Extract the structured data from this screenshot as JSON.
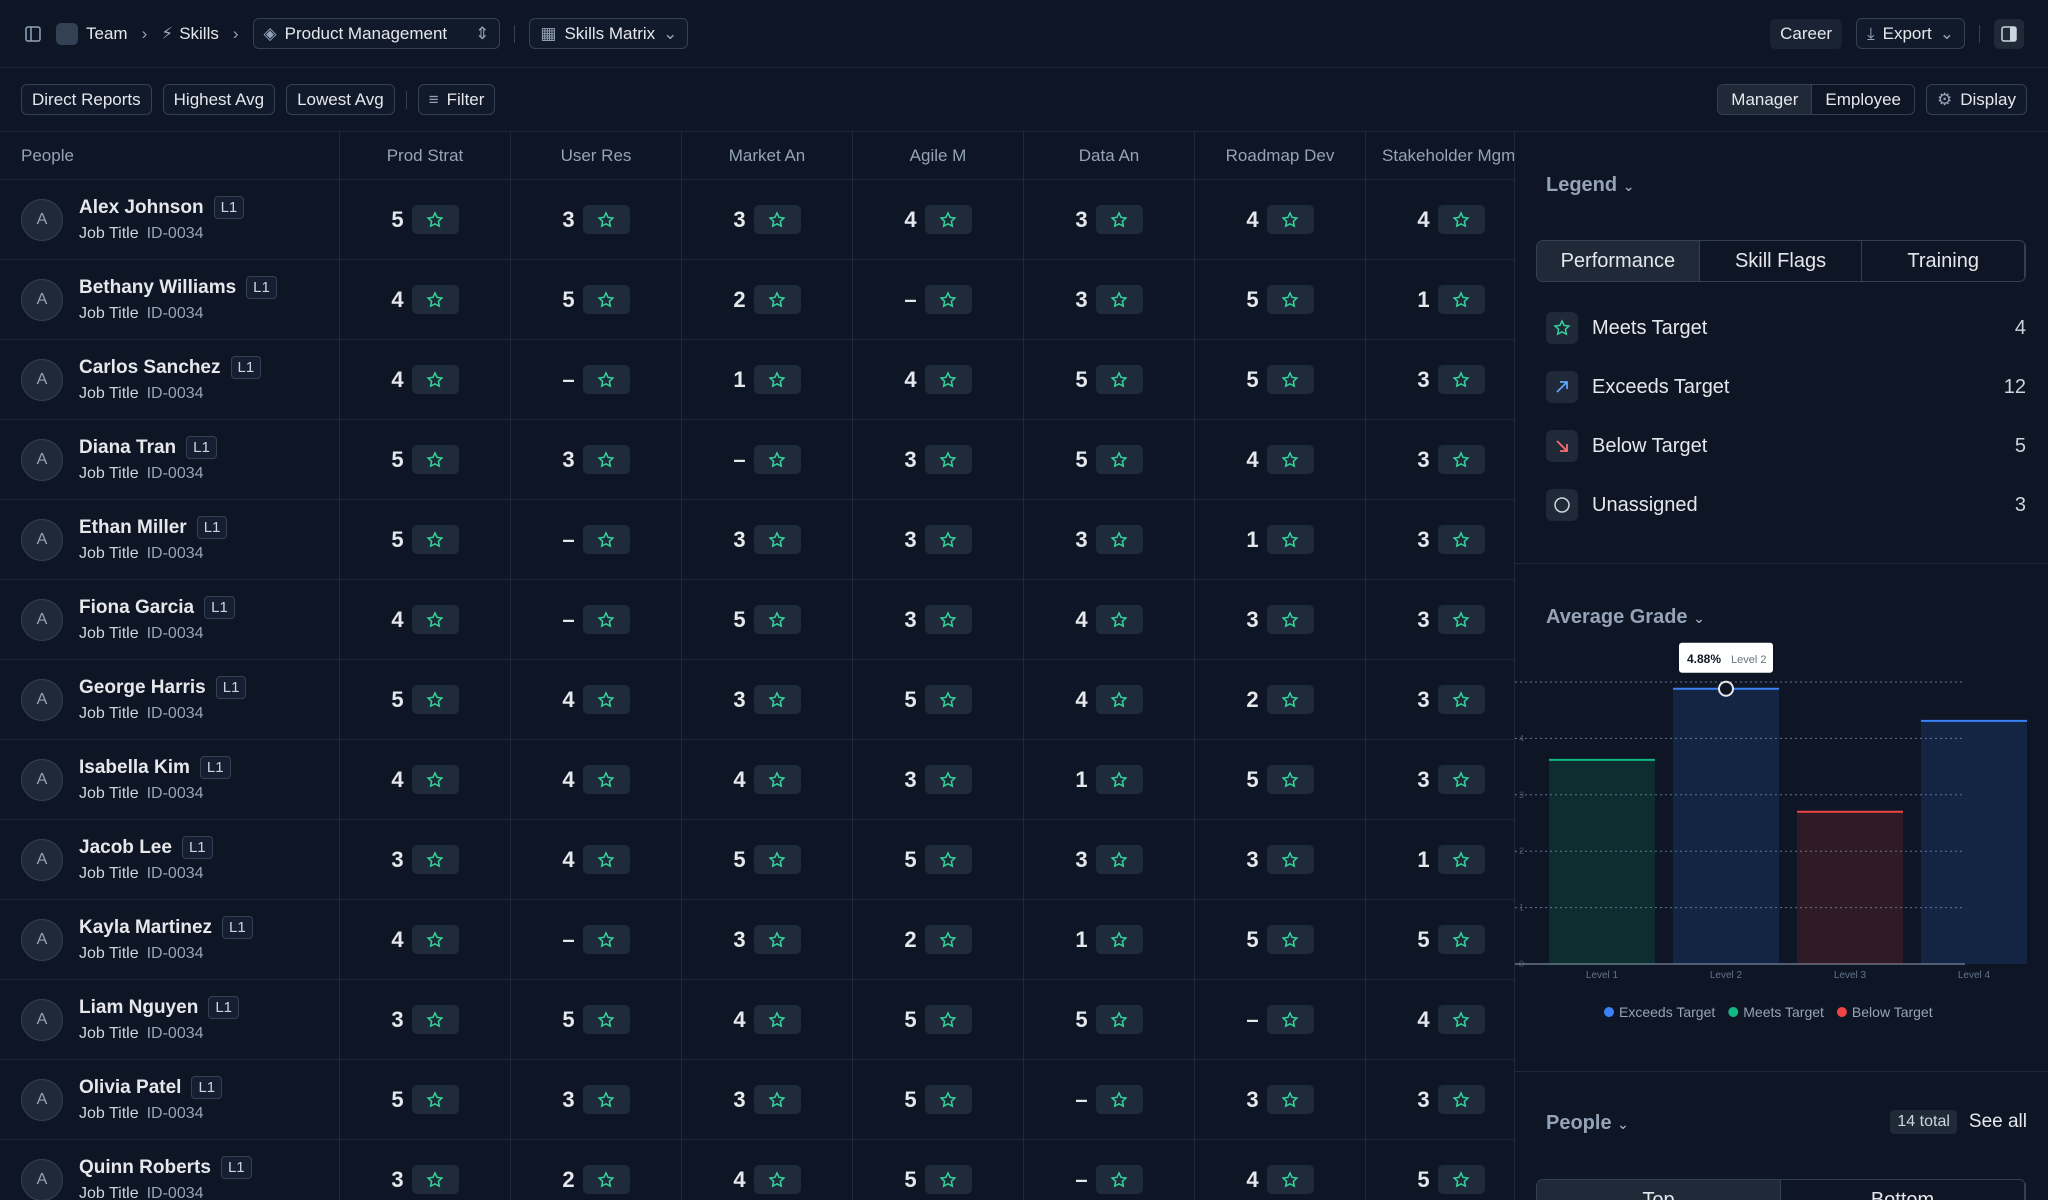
{
  "header": {
    "breadcrumb": [
      "Team",
      "Skills"
    ],
    "team_dropdown": "Product Management",
    "view_dropdown": "Skills Matrix",
    "career": "Career",
    "export": "Export"
  },
  "toolbar": {
    "quick_filters": [
      "Direct Reports",
      "Highest Avg",
      "Lowest Avg"
    ],
    "filter": "Filter",
    "perspective": [
      "Manager",
      "Employee"
    ],
    "display": "Display"
  },
  "table": {
    "columns": [
      "People",
      "Prod Strat",
      "User Res",
      "Market An",
      "Agile M",
      "Data An",
      "Roadmap Dev",
      "Stakeholder Mgmt"
    ],
    "rows": [
      {
        "avatar": "A",
        "name": "Alex Johnson",
        "level": "L1",
        "title": "Job Title",
        "id": "ID-0034",
        "scores": [
          5,
          3,
          3,
          4,
          3,
          4,
          4
        ]
      },
      {
        "avatar": "A",
        "name": "Bethany Williams",
        "level": "L1",
        "title": "Job Title",
        "id": "ID-0034",
        "scores": [
          4,
          5,
          2,
          "–",
          3,
          5,
          1
        ]
      },
      {
        "avatar": "A",
        "name": "Carlos Sanchez",
        "level": "L1",
        "title": "Job Title",
        "id": "ID-0034",
        "scores": [
          4,
          "–",
          1,
          4,
          5,
          5,
          3
        ]
      },
      {
        "avatar": "A",
        "name": "Diana Tran",
        "level": "L1",
        "title": "Job Title",
        "id": "ID-0034",
        "scores": [
          5,
          3,
          "–",
          3,
          5,
          4,
          3
        ]
      },
      {
        "avatar": "A",
        "name": "Ethan Miller",
        "level": "L1",
        "title": "Job Title",
        "id": "ID-0034",
        "scores": [
          5,
          "–",
          3,
          3,
          3,
          1,
          3
        ]
      },
      {
        "avatar": "A",
        "name": "Fiona Garcia",
        "level": "L1",
        "title": "Job Title",
        "id": "ID-0034",
        "scores": [
          4,
          "–",
          5,
          3,
          4,
          3,
          3
        ]
      },
      {
        "avatar": "A",
        "name": "George Harris",
        "level": "L1",
        "title": "Job Title",
        "id": "ID-0034",
        "scores": [
          5,
          4,
          3,
          5,
          4,
          2,
          3
        ]
      },
      {
        "avatar": "A",
        "name": "Isabella Kim",
        "level": "L1",
        "title": "Job Title",
        "id": "ID-0034",
        "scores": [
          4,
          4,
          4,
          3,
          1,
          5,
          3
        ]
      },
      {
        "avatar": "A",
        "name": "Jacob Lee",
        "level": "L1",
        "title": "Job Title",
        "id": "ID-0034",
        "scores": [
          3,
          4,
          5,
          5,
          3,
          3,
          1
        ]
      },
      {
        "avatar": "A",
        "name": "Kayla Martinez",
        "level": "L1",
        "title": "Job Title",
        "id": "ID-0034",
        "scores": [
          4,
          "–",
          3,
          2,
          1,
          5,
          5
        ]
      },
      {
        "avatar": "A",
        "name": "Liam Nguyen",
        "level": "L1",
        "title": "Job Title",
        "id": "ID-0034",
        "scores": [
          3,
          5,
          4,
          5,
          5,
          "–",
          4
        ]
      },
      {
        "avatar": "A",
        "name": "Olivia Patel",
        "level": "L1",
        "title": "Job Title",
        "id": "ID-0034",
        "scores": [
          5,
          3,
          3,
          5,
          "–",
          3,
          3
        ]
      },
      {
        "avatar": "A",
        "name": "Quinn Roberts",
        "level": "L1",
        "title": "Job Title",
        "id": "ID-0034",
        "scores": [
          3,
          2,
          4,
          5,
          "–",
          4,
          5
        ]
      }
    ]
  },
  "legend": {
    "title": "Legend",
    "tabs": [
      "Performance",
      "Skill Flags",
      "Training"
    ],
    "items": [
      {
        "label": "Meets Target",
        "count": 4
      },
      {
        "label": "Exceeds Target",
        "count": 12
      },
      {
        "label": "Below Target",
        "count": 5
      },
      {
        "label": "Unassigned",
        "count": 3
      }
    ]
  },
  "average_grade": {
    "title": "Average Grade",
    "chart_data": {
      "type": "bar",
      "categories": [
        "Level 1",
        "Level 2",
        "Level 3",
        "Level 4"
      ],
      "values": [
        3.62,
        4.88,
        2.7,
        4.31
      ],
      "colors": [
        "#10b981",
        "#3b82f6",
        "#ef4444",
        "#3b82f6"
      ],
      "ylim": [
        0,
        5
      ],
      "yticks": [
        0,
        1,
        2,
        3,
        4
      ],
      "grid": true,
      "tooltip": {
        "value": "4.88%",
        "label": "Level 2"
      },
      "legend": [
        {
          "name": "Exceeds Target",
          "color": "#3b82f6"
        },
        {
          "name": "Meets Target",
          "color": "#10b981"
        },
        {
          "name": "Below Target",
          "color": "#ef4444"
        }
      ]
    }
  },
  "people": {
    "title": "People",
    "total": "14 total",
    "see_all": "See all",
    "tabs": [
      "Top",
      "Bottom"
    ]
  }
}
